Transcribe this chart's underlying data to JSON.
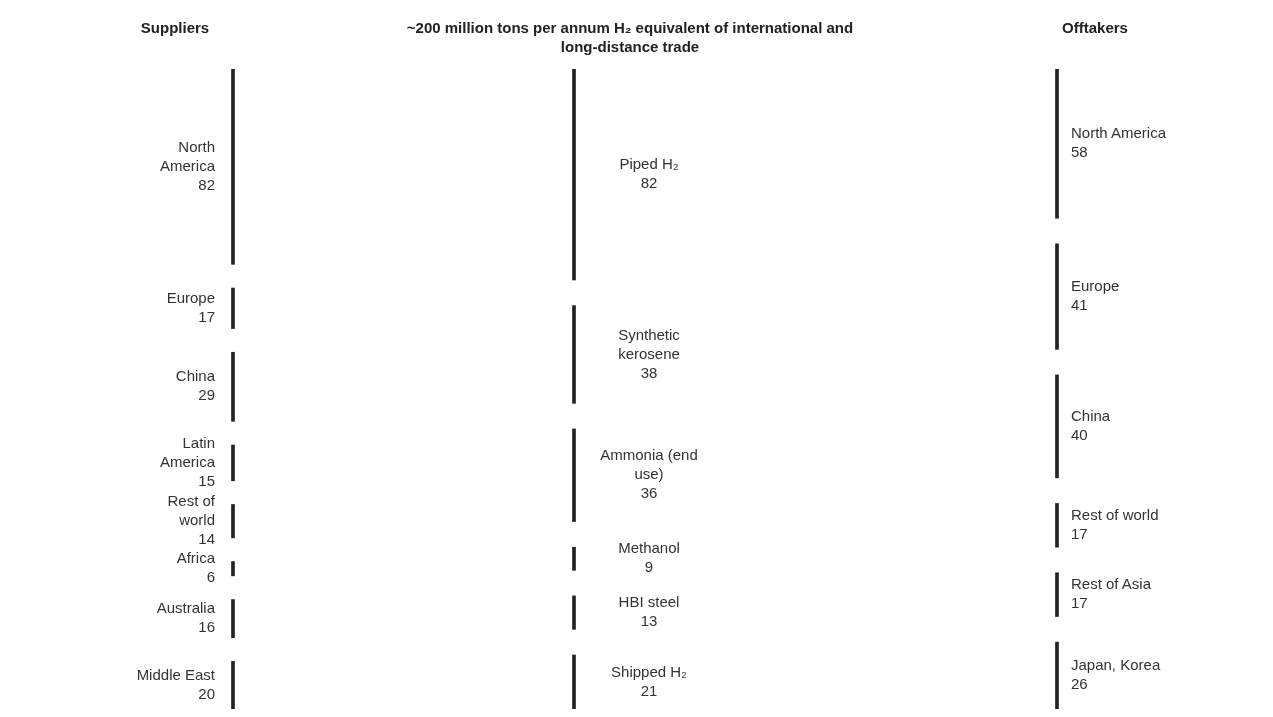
{
  "chart_data": [
    {
      "type": "other",
      "title": "Suppliers",
      "categories": [
        "North America",
        "Europe",
        "China",
        "Latin America",
        "Rest of world",
        "Africa",
        "Australia",
        "Middle East"
      ],
      "values": [
        82,
        17,
        29,
        15,
        14,
        6,
        16,
        20
      ],
      "color": "#222222",
      "data_labels": true
    },
    {
      "type": "other",
      "title": "~200 million tons per annum H₂ equivalent of international and long-distance trade",
      "categories": [
        "Piped H₂",
        "Synthetic kerosene",
        "Ammonia (end use)",
        "Methanol",
        "HBI steel",
        "Shipped H₂"
      ],
      "values": [
        82,
        38,
        36,
        9,
        13,
        21
      ],
      "color": "#222222",
      "data_labels": true
    },
    {
      "type": "other",
      "title": "Offtakers",
      "categories": [
        "North America",
        "Europe",
        "China",
        "Rest of world",
        "Rest of Asia",
        "Japan, Korea"
      ],
      "values": [
        58,
        41,
        40,
        17,
        17,
        26
      ],
      "color": "#222222",
      "data_labels": true
    }
  ]
}
